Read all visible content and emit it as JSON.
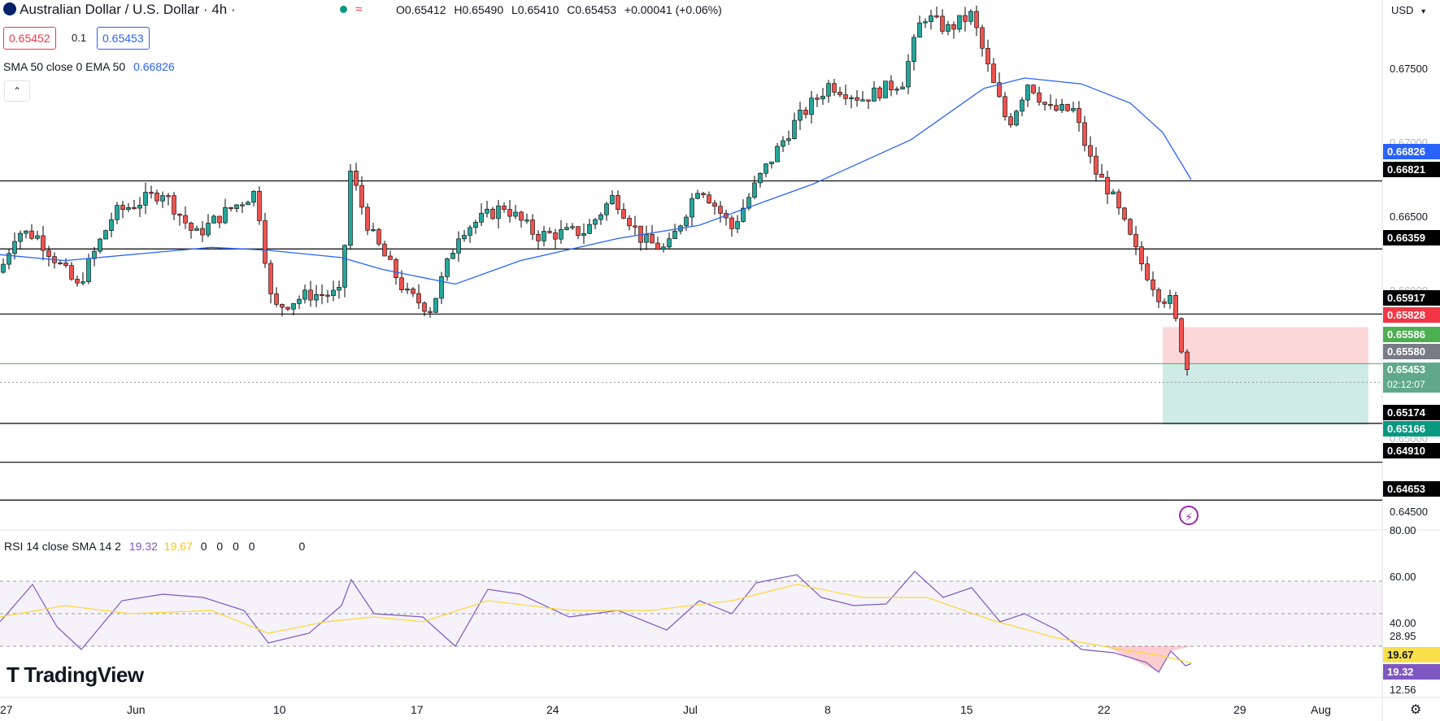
{
  "header": {
    "symbol_title": "Australian Dollar / U.S. Dollar · 4h ·",
    "ohlc": {
      "open": "O0.65412",
      "high": "H0.65490",
      "low": "L0.65410",
      "close": "C0.65453",
      "change": "+0.00041 (+0.06%)"
    },
    "sell_price": "0.65452",
    "spread": "0.1",
    "buy_price": "0.65453",
    "indicator_label": "SMA 50 close 0 EMA 50",
    "indicator_value": "0.66826",
    "collapse_icon": "chevron-up-icon",
    "currency": "USD"
  },
  "rsi": {
    "label": "RSI 14 close SMA 14 2",
    "value": "19.32",
    "sma_value": "19.67",
    "extras": [
      "0",
      "0",
      "0",
      "0",
      "0"
    ],
    "axis_labels": [
      "80.00",
      "60.00",
      "40.00",
      "28.95",
      "12.56"
    ]
  },
  "price_axis": {
    "plain_labels": [
      "0.67500",
      "0.67000",
      "0.66500",
      "0.66000",
      "0.65000",
      "0.64500"
    ],
    "boxed_labels": [
      {
        "text": "0.66826",
        "color": "#2962ff"
      },
      {
        "text": "0.66821",
        "color": "#000000"
      },
      {
        "text": "0.66359",
        "color": "#000000"
      },
      {
        "text": "0.65917",
        "color": "#000000"
      },
      {
        "text": "0.65828",
        "color": "#f23645"
      },
      {
        "text": "0.65586",
        "color": "#4caf50"
      },
      {
        "text": "0.65580",
        "color": "#787b86"
      },
      {
        "text": "0.65453",
        "color": "#5fa98a"
      },
      {
        "text": "02:12:07",
        "color": "#5fa98a"
      },
      {
        "text": "0.65174",
        "color": "#000000"
      },
      {
        "text": "0.65166",
        "color": "#089981"
      },
      {
        "text": "0.64910",
        "color": "#000000"
      },
      {
        "text": "0.64653",
        "color": "#000000"
      }
    ],
    "rsi_boxes": [
      {
        "text": "19.67",
        "color": "#f7e04b"
      },
      {
        "text": "19.32",
        "color": "#7e57c2"
      }
    ]
  },
  "time_axis": [
    "27",
    "Jun",
    "10",
    "17",
    "24",
    "Jul",
    "8",
    "15",
    "22",
    "29",
    "Aug"
  ],
  "logo": {
    "text": "TradingView"
  },
  "chart_data": {
    "type": "candlestick",
    "price_range": [
      0.6445,
      0.6805
    ],
    "horizontal_levels": [
      0.66821,
      0.66359,
      0.65917,
      0.65174,
      0.6491,
      0.64653
    ],
    "position": {
      "entry": 0.6558,
      "stop": 0.65828,
      "target": 0.65166
    },
    "last_price": 0.65453,
    "sma50_last": 0.66826,
    "rsi_current": 19.32,
    "rsi_sma_current": 19.67,
    "rsi_bands": [
      70,
      50,
      30
    ]
  },
  "colors": {
    "up": "#26a69a",
    "down": "#ef5350",
    "ma": "#2962ff",
    "rsi": "#7e57c2",
    "rsi_sma": "#fdd835"
  }
}
